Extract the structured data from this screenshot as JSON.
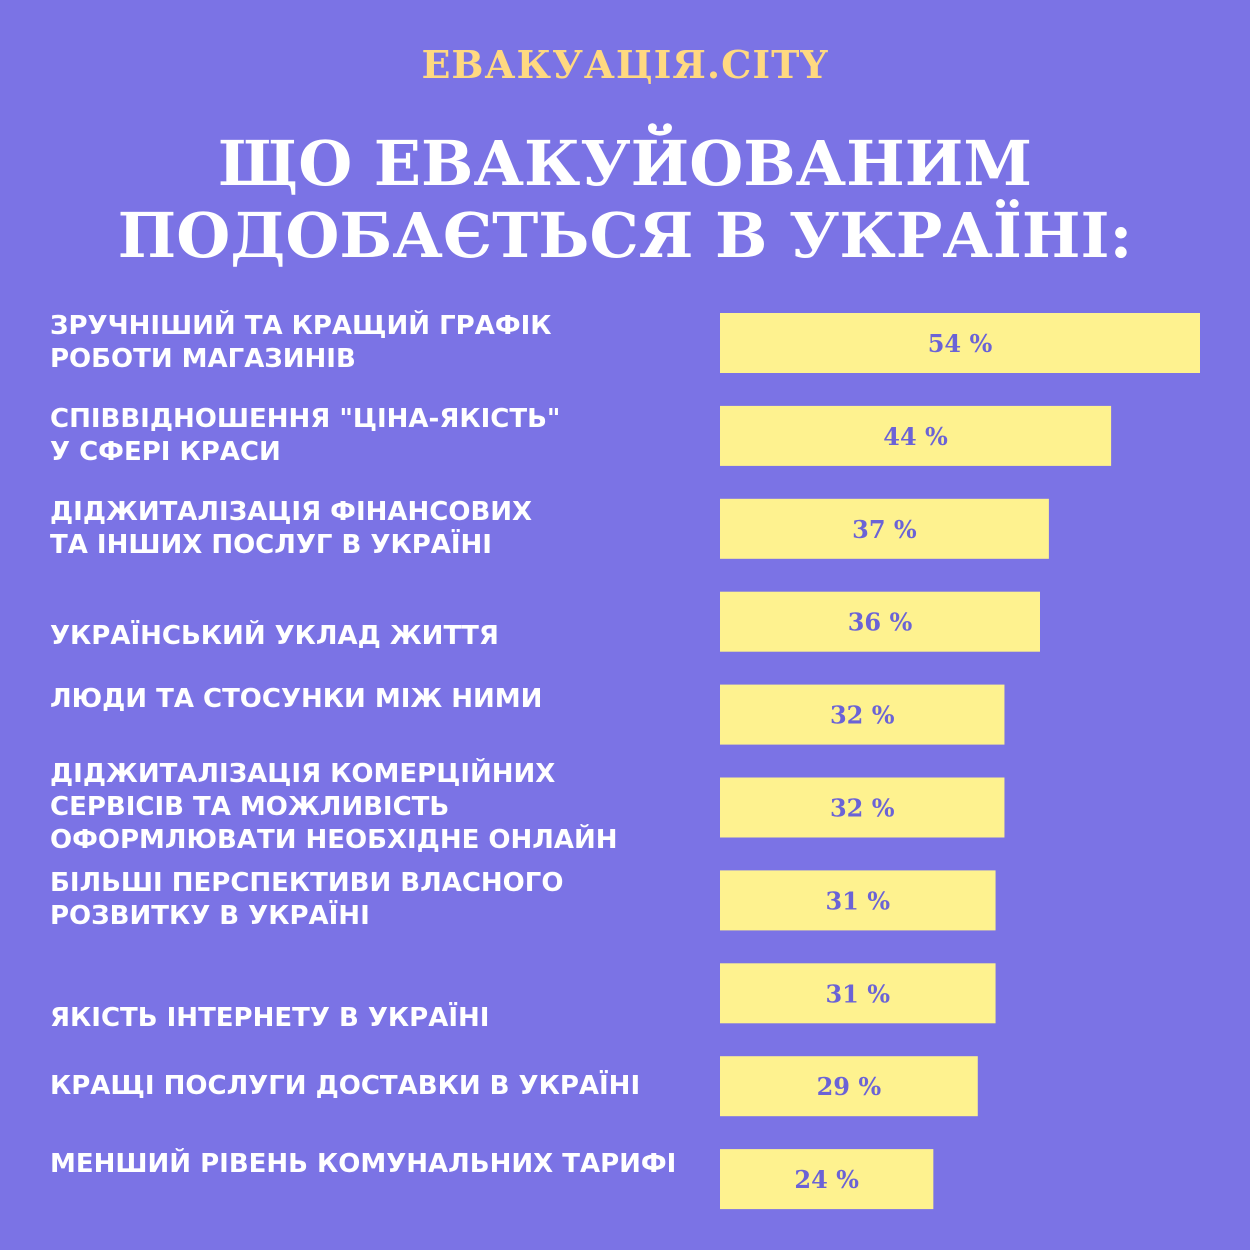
{
  "brand": "ЕВАКУАЦІЯ.CITY",
  "title_lines": [
    "ЩО ЕВАКУЙОВАНИМ",
    "ПОДОБАЄТЬСЯ В УКРАЇНІ:"
  ],
  "colors": {
    "background": "#7b73e5",
    "bar": "#fef28f",
    "bar_label": "#6b63d6",
    "brand": "#ffd980",
    "text": "#ffffff"
  },
  "chart_data": {
    "type": "bar",
    "orientation": "horizontal",
    "categories": [
      "ЗРУЧНІШИЙ ТА КРАЩИЙ ГРАФІК РОБОТИ МАГАЗИНІВ",
      "СПІВВІДНОШЕННЯ \"ЦІНА-ЯКІСТЬ\" У СФЕРІ КРАСИ",
      "ДІДЖИТАЛІЗАЦІЯ ФІНАНСОВИХ ТА ІНШИХ ПОСЛУГ В УКРАЇНІ",
      "УКРАЇНСЬКИЙ УКЛАД ЖИТТЯ",
      "ЛЮДИ ТА СТОСУНКИ МІЖ НИМИ",
      "ДІДЖИТАЛІЗАЦІЯ КОМЕРЦІЙНИХ СЕРВІСІВ ТА МОЖЛИВІСТЬ ОФОРМЛЮВАТИ НЕОБХІДНЕ ОНЛАЙН",
      "БІЛЬШІ ПЕРСПЕКТИВИ ВЛАСНОГО РОЗВИТКУ В УКРАЇНІ",
      "ЯКІСТЬ ІНТЕРНЕТУ В УКРАЇНІ",
      "КРАЩІ ПОСЛУГИ ДОСТАВКИ В УКРАЇНІ",
      "МЕНШИЙ РІВЕНЬ КОМУНАЛЬНИХ ТАРИФІ"
    ],
    "category_lines": [
      [
        "ЗРУЧНІШИЙ ТА КРАЩИЙ ГРАФІК",
        "РОБОТИ МАГАЗИНІВ"
      ],
      [
        "СПІВВІДНОШЕННЯ \"ЦІНА-ЯКІСТЬ\"",
        "У СФЕРІ КРАСИ"
      ],
      [
        "ДІДЖИТАЛІЗАЦІЯ ФІНАНСОВИХ",
        "ТА ІНШИХ ПОСЛУГ В УКРАЇНІ"
      ],
      [
        "УКРАЇНСЬКИЙ УКЛАД ЖИТТЯ"
      ],
      [
        "ЛЮДИ ТА СТОСУНКИ МІЖ НИМИ"
      ],
      [
        "ДІДЖИТАЛІЗАЦІЯ КОМЕРЦІЙНИХ",
        "СЕРВІСІВ ТА МОЖЛИВІСТЬ",
        "ОФОРМЛЮВАТИ НЕОБХІДНЕ ОНЛАЙН"
      ],
      [
        "БІЛЬШІ ПЕРСПЕКТИВИ ВЛАСНОГО",
        "РОЗВИТКУ В УКРАЇНІ"
      ],
      [
        "ЯКІСТЬ ІНТЕРНЕТУ В УКРАЇНІ"
      ],
      [
        "КРАЩІ ПОСЛУГИ ДОСТАВКИ В УКРАЇНІ"
      ],
      [
        "МЕНШИЙ РІВЕНЬ КОМУНАЛЬНИХ ТАРИФІ"
      ]
    ],
    "values": [
      54,
      44,
      37,
      36,
      32,
      32,
      31,
      31,
      29,
      24
    ],
    "data_labels": [
      "54 %",
      "44 %",
      "37 %",
      "36 %",
      "32 %",
      "32 %",
      "31 %",
      "31 %",
      "29 %",
      "24 %"
    ],
    "unit": "%",
    "grid": false,
    "legend": "none"
  }
}
